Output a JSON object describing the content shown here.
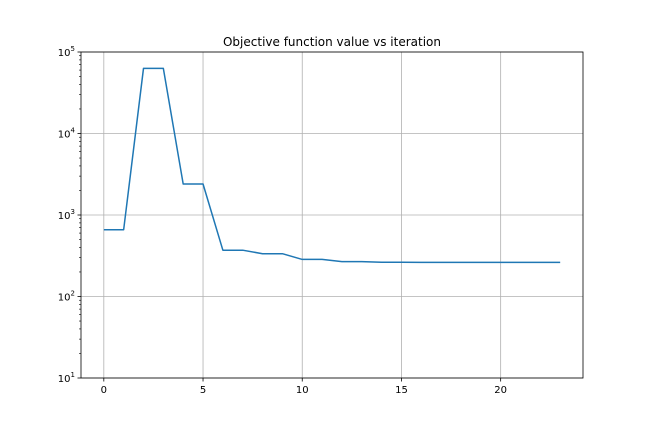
{
  "chart_data": {
    "type": "line",
    "title": "Objective function value vs iteration",
    "xlabel": "",
    "ylabel": "",
    "xlim": [
      -1.15,
      24.15
    ],
    "ylim": [
      10,
      100000
    ],
    "yscale": "log",
    "grid": true,
    "x_ticks": [
      0,
      5,
      10,
      15,
      20
    ],
    "x_tick_labels": [
      "0",
      "5",
      "10",
      "15",
      "20"
    ],
    "y_ticks": [
      10,
      100,
      1000,
      10000,
      100000
    ],
    "y_tick_labels": [
      {
        "base": "10",
        "exp": "1"
      },
      {
        "base": "10",
        "exp": "2"
      },
      {
        "base": "10",
        "exp": "3"
      },
      {
        "base": "10",
        "exp": "4"
      },
      {
        "base": "10",
        "exp": "5"
      }
    ],
    "series": [
      {
        "color": "#1f77b4",
        "x": [
          0,
          1,
          2,
          3,
          4,
          5,
          6,
          7,
          8,
          9,
          10,
          11,
          12,
          13,
          14,
          15,
          16,
          17,
          18,
          19,
          20,
          21,
          22,
          23
        ],
        "values": [
          660,
          660,
          63000,
          63000,
          2400,
          2400,
          370,
          370,
          335,
          335,
          285,
          285,
          268,
          268,
          263,
          263,
          262,
          262,
          262,
          262,
          262,
          262,
          262,
          262
        ]
      }
    ]
  }
}
